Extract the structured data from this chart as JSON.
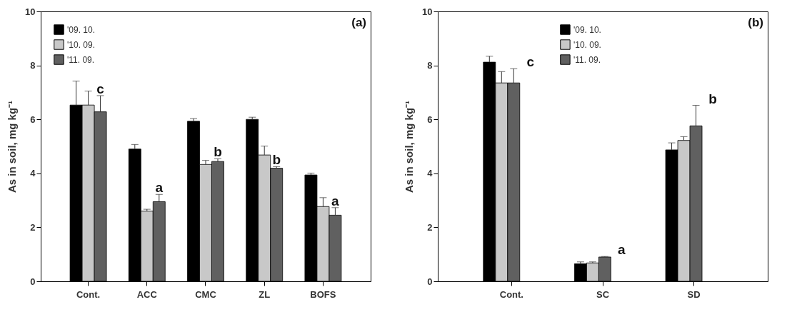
{
  "chart_data": [
    {
      "type": "bar",
      "categories": [
        "Cont.",
        "ACC",
        "CMC",
        "ZL",
        "BOFS"
      ],
      "ylabel": "As in soil, mg kg⁻¹",
      "ylim": [
        0,
        10
      ],
      "yticks": [
        0,
        2,
        4,
        6,
        8,
        10
      ],
      "legend": "top left",
      "annotations": [
        "(a)",
        "c",
        "a",
        "b",
        "b",
        "a"
      ],
      "series": [
        {
          "name": "'09. 10.",
          "color": "#000000",
          "values": [
            6.53,
            4.9,
            5.93,
            6.0,
            3.94
          ],
          "errors": [
            [
              6.53,
              7.42
            ],
            [
              4.9,
              5.07
            ],
            [
              5.93,
              6.03
            ],
            [
              6.0,
              6.08
            ],
            [
              3.94,
              4.01
            ]
          ]
        },
        {
          "name": "'10. 09.",
          "color": "#c8c8c8",
          "values": [
            6.53,
            2.6,
            4.33,
            4.68,
            2.77
          ],
          "errors": [
            [
              6.53,
              7.05
            ],
            [
              2.6,
              2.67
            ],
            [
              4.33,
              4.48
            ],
            [
              4.68,
              5.01
            ],
            [
              2.77,
              3.1
            ]
          ]
        },
        {
          "name": "'11. 09.",
          "color": "#606060",
          "values": [
            6.28,
            2.95,
            4.44,
            4.19,
            2.45
          ],
          "errors": [
            [
              6.28,
              6.88
            ],
            [
              2.95,
              3.22
            ],
            [
              4.44,
              4.54
            ],
            [
              4.19,
              4.25
            ],
            [
              2.45,
              2.73
            ]
          ]
        }
      ]
    },
    {
      "type": "bar",
      "categories": [
        "Cont.",
        "SC",
        "SD"
      ],
      "ylabel": "As in soil, mg kg⁻¹",
      "ylim": [
        0,
        10
      ],
      "yticks": [
        0,
        2,
        4,
        6,
        8,
        10
      ],
      "legend": "top",
      "annotations": [
        "(b)",
        "c",
        "a",
        "b"
      ],
      "series": [
        {
          "name": "'09. 10.",
          "color": "#000000",
          "values": [
            8.12,
            0.65,
            4.87
          ],
          "errors": [
            [
              8.12,
              8.34
            ],
            [
              0.65,
              0.72
            ],
            [
              4.87,
              5.13
            ]
          ]
        },
        {
          "name": "'10. 09.",
          "color": "#c8c8c8",
          "values": [
            7.35,
            0.68,
            5.22
          ],
          "errors": [
            [
              7.35,
              7.77
            ],
            [
              0.68,
              0.72
            ],
            [
              5.22,
              5.36
            ]
          ]
        },
        {
          "name": "'11. 09.",
          "color": "#606060",
          "values": [
            7.35,
            0.9,
            5.76
          ],
          "errors": [
            [
              7.35,
              7.88
            ],
            [
              0.9,
              0.92
            ],
            [
              5.76,
              6.52
            ]
          ]
        }
      ]
    }
  ]
}
